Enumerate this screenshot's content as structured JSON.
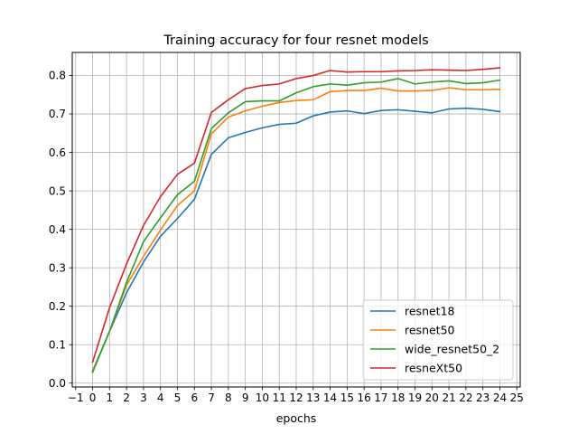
{
  "chart_data": {
    "type": "line",
    "title": "Training accuracy for four resnet models",
    "xlabel": "epochs",
    "ylabel": "",
    "xlim": [
      -1.2,
      25.2
    ],
    "ylim": [
      -0.01,
      0.86
    ],
    "xticks": [
      -1,
      0,
      1,
      2,
      3,
      4,
      5,
      6,
      7,
      8,
      9,
      10,
      11,
      12,
      13,
      14,
      15,
      16,
      17,
      18,
      19,
      20,
      21,
      22,
      23,
      24,
      25
    ],
    "yticks": [
      "0.0",
      "0.1",
      "0.2",
      "0.3",
      "0.4",
      "0.5",
      "0.6",
      "0.7",
      "0.8"
    ],
    "grid": true,
    "legend_position": "lower-right",
    "x": [
      0,
      1,
      2,
      3,
      4,
      5,
      6,
      7,
      8,
      9,
      10,
      11,
      12,
      13,
      14,
      15,
      16,
      17,
      18,
      19,
      20,
      21,
      22,
      23,
      24
    ],
    "series": [
      {
        "name": "resnet18",
        "color": "#1f77b4",
        "values": [
          0.032,
          0.135,
          0.235,
          0.315,
          0.382,
          0.428,
          0.478,
          0.595,
          0.638,
          0.652,
          0.664,
          0.673,
          0.676,
          0.695,
          0.705,
          0.708,
          0.701,
          0.709,
          0.711,
          0.707,
          0.703,
          0.713,
          0.715,
          0.712,
          0.706
        ]
      },
      {
        "name": "resnet50",
        "color": "#ff7f0e",
        "values": [
          0.03,
          0.135,
          0.255,
          0.33,
          0.398,
          0.462,
          0.5,
          0.648,
          0.692,
          0.708,
          0.72,
          0.73,
          0.735,
          0.737,
          0.758,
          0.761,
          0.761,
          0.767,
          0.76,
          0.76,
          0.761,
          0.768,
          0.763,
          0.763,
          0.764
        ]
      },
      {
        "name": "wide_resnet50_2",
        "color": "#2ca02c",
        "values": [
          0.028,
          0.135,
          0.262,
          0.368,
          0.43,
          0.49,
          0.525,
          0.662,
          0.703,
          0.732,
          0.734,
          0.734,
          0.755,
          0.771,
          0.778,
          0.775,
          0.781,
          0.783,
          0.792,
          0.778,
          0.783,
          0.786,
          0.779,
          0.781,
          0.788
        ]
      },
      {
        "name": "resneXt50",
        "color": "#d62728",
        "values": [
          0.055,
          0.196,
          0.31,
          0.41,
          0.485,
          0.543,
          0.572,
          0.704,
          0.737,
          0.766,
          0.774,
          0.778,
          0.792,
          0.8,
          0.813,
          0.809,
          0.81,
          0.81,
          0.812,
          0.813,
          0.815,
          0.814,
          0.813,
          0.816,
          0.82
        ]
      }
    ]
  }
}
